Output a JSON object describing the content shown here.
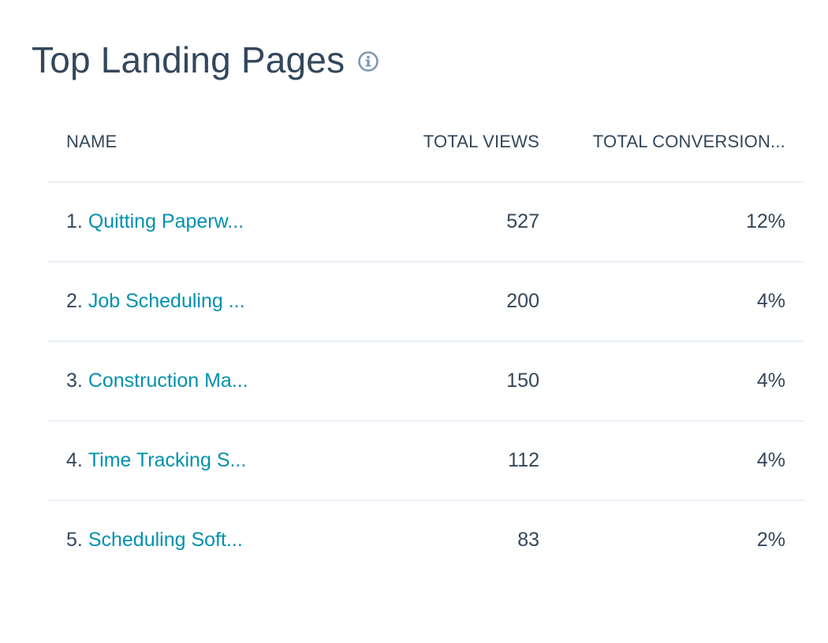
{
  "widget": {
    "title": "Top Landing Pages",
    "info_icon": "info-circle-icon"
  },
  "table": {
    "columns": {
      "name": "NAME",
      "views": "TOTAL VIEWS",
      "conversions": "TOTAL CONVERSION..."
    },
    "rows": [
      {
        "rank": "1.",
        "name": "Quitting Paperw...",
        "views": "527",
        "conversion": "12%"
      },
      {
        "rank": "2.",
        "name": "Job Scheduling ...",
        "views": "200",
        "conversion": "4%"
      },
      {
        "rank": "3.",
        "name": "Construction Ma...",
        "views": "150",
        "conversion": "4%"
      },
      {
        "rank": "4.",
        "name": "Time Tracking S...",
        "views": "112",
        "conversion": "4%"
      },
      {
        "rank": "5.",
        "name": "Scheduling Soft...",
        "views": "83",
        "conversion": "2%"
      }
    ]
  },
  "colors": {
    "text": "#33475b",
    "link": "#0091ae",
    "divider": "#eaf0f6",
    "icon": "#7c98b6"
  }
}
